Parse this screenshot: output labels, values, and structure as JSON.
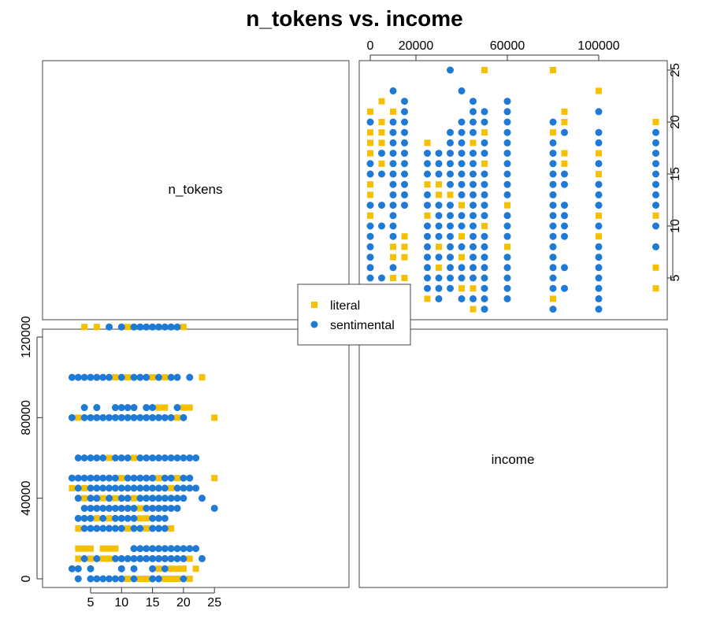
{
  "title": "n_tokens vs. income",
  "legend": {
    "items": [
      {
        "label": "literal",
        "color": "#F5C000",
        "shape": "square"
      },
      {
        "label": "sentimental",
        "color": "#1F7AD6",
        "shape": "circle"
      }
    ]
  },
  "chart_data": {
    "type": "scatter",
    "layout": "scatterplot-matrix",
    "title": "n_tokens vs. income",
    "variables": [
      "n_tokens",
      "income"
    ],
    "diagonal_labels": [
      "n_tokens",
      "income"
    ],
    "n_tokens_axis": {
      "range": [
        2,
        25
      ],
      "ticks": [
        5,
        10,
        15,
        20,
        25
      ]
    },
    "income_axis": {
      "range": [
        0,
        125000
      ],
      "ticks_bottom_left": [
        0,
        40000,
        80000,
        120000
      ],
      "ticks_top_right": [
        0,
        20000,
        60000,
        100000
      ]
    },
    "grid": false,
    "legend_position": "center",
    "series": [
      {
        "name": "literal",
        "color": "#F5C000",
        "marker": "square",
        "points": [
          [
            4,
            125000
          ],
          [
            6,
            125000
          ],
          [
            11,
            125000
          ],
          [
            20,
            125000
          ],
          [
            9,
            100000
          ],
          [
            11,
            100000
          ],
          [
            15,
            100000
          ],
          [
            17,
            100000
          ],
          [
            23,
            100000
          ],
          [
            3,
            80000
          ],
          [
            16,
            85000
          ],
          [
            17,
            85000
          ],
          [
            19,
            80000
          ],
          [
            20,
            85000
          ],
          [
            21,
            85000
          ],
          [
            25,
            80000
          ],
          [
            12,
            60000
          ],
          [
            8,
            60000
          ],
          [
            2,
            45000
          ],
          [
            4,
            45000
          ],
          [
            10,
            50000
          ],
          [
            16,
            50000
          ],
          [
            18,
            45000
          ],
          [
            19,
            50000
          ],
          [
            25,
            50000
          ],
          [
            4,
            40000
          ],
          [
            7,
            40000
          ],
          [
            9,
            40000
          ],
          [
            12,
            40000
          ],
          [
            13,
            35000
          ],
          [
            6,
            30000
          ],
          [
            8,
            30000
          ],
          [
            11,
            25000
          ],
          [
            13,
            30000
          ],
          [
            14,
            30000
          ],
          [
            14,
            25000
          ],
          [
            18,
            25000
          ],
          [
            3,
            25000
          ],
          [
            3,
            15000
          ],
          [
            4,
            15000
          ],
          [
            5,
            15000
          ],
          [
            7,
            15000
          ],
          [
            8,
            15000
          ],
          [
            9,
            15000
          ],
          [
            3,
            10000
          ],
          [
            5,
            10000
          ],
          [
            7,
            10000
          ],
          [
            8,
            10000
          ],
          [
            17,
            0
          ],
          [
            18,
            0
          ],
          [
            18,
            5000
          ],
          [
            19,
            0
          ],
          [
            19,
            5000
          ],
          [
            20,
            5000
          ],
          [
            21,
            0
          ],
          [
            22,
            5000
          ],
          [
            21,
            10000
          ],
          [
            11,
            0
          ],
          [
            13,
            0
          ],
          [
            14,
            0
          ],
          [
            16,
            5000
          ]
        ]
      },
      {
        "name": "sentimental",
        "color": "#1F7AD6",
        "marker": "circle",
        "points": [
          [
            8,
            125000
          ],
          [
            10,
            125000
          ],
          [
            12,
            125000
          ],
          [
            13,
            125000
          ],
          [
            14,
            125000
          ],
          [
            15,
            125000
          ],
          [
            16,
            125000
          ],
          [
            17,
            125000
          ],
          [
            18,
            125000
          ],
          [
            19,
            125000
          ],
          [
            2,
            100000
          ],
          [
            3,
            100000
          ],
          [
            4,
            100000
          ],
          [
            5,
            100000
          ],
          [
            6,
            100000
          ],
          [
            7,
            100000
          ],
          [
            8,
            100000
          ],
          [
            10,
            100000
          ],
          [
            12,
            100000
          ],
          [
            13,
            100000
          ],
          [
            14,
            100000
          ],
          [
            16,
            100000
          ],
          [
            18,
            100000
          ],
          [
            19,
            100000
          ],
          [
            21,
            100000
          ],
          [
            2,
            80000
          ],
          [
            4,
            85000
          ],
          [
            4,
            80000
          ],
          [
            5,
            80000
          ],
          [
            6,
            85000
          ],
          [
            6,
            80000
          ],
          [
            7,
            80000
          ],
          [
            8,
            80000
          ],
          [
            9,
            85000
          ],
          [
            9,
            80000
          ],
          [
            10,
            85000
          ],
          [
            10,
            80000
          ],
          [
            11,
            85000
          ],
          [
            11,
            80000
          ],
          [
            12,
            85000
          ],
          [
            12,
            80000
          ],
          [
            13,
            80000
          ],
          [
            14,
            85000
          ],
          [
            14,
            80000
          ],
          [
            15,
            85000
          ],
          [
            15,
            80000
          ],
          [
            16,
            80000
          ],
          [
            17,
            80000
          ],
          [
            18,
            80000
          ],
          [
            19,
            85000
          ],
          [
            20,
            80000
          ],
          [
            3,
            60000
          ],
          [
            4,
            60000
          ],
          [
            5,
            60000
          ],
          [
            6,
            60000
          ],
          [
            7,
            60000
          ],
          [
            9,
            60000
          ],
          [
            10,
            60000
          ],
          [
            11,
            60000
          ],
          [
            13,
            60000
          ],
          [
            14,
            60000
          ],
          [
            15,
            60000
          ],
          [
            16,
            60000
          ],
          [
            17,
            60000
          ],
          [
            18,
            60000
          ],
          [
            19,
            60000
          ],
          [
            20,
            60000
          ],
          [
            21,
            60000
          ],
          [
            22,
            60000
          ],
          [
            2,
            50000
          ],
          [
            3,
            50000
          ],
          [
            4,
            50000
          ],
          [
            5,
            50000
          ],
          [
            6,
            50000
          ],
          [
            7,
            50000
          ],
          [
            8,
            50000
          ],
          [
            9,
            50000
          ],
          [
            11,
            50000
          ],
          [
            12,
            50000
          ],
          [
            13,
            50000
          ],
          [
            14,
            50000
          ],
          [
            15,
            50000
          ],
          [
            17,
            50000
          ],
          [
            18,
            50000
          ],
          [
            20,
            50000
          ],
          [
            21,
            50000
          ],
          [
            3,
            45000
          ],
          [
            5,
            45000
          ],
          [
            6,
            45000
          ],
          [
            7,
            45000
          ],
          [
            8,
            45000
          ],
          [
            9,
            45000
          ],
          [
            10,
            45000
          ],
          [
            11,
            45000
          ],
          [
            12,
            45000
          ],
          [
            13,
            45000
          ],
          [
            14,
            45000
          ],
          [
            15,
            45000
          ],
          [
            16,
            45000
          ],
          [
            17,
            45000
          ],
          [
            19,
            45000
          ],
          [
            20,
            45000
          ],
          [
            21,
            45000
          ],
          [
            22,
            45000
          ],
          [
            3,
            40000
          ],
          [
            5,
            40000
          ],
          [
            6,
            40000
          ],
          [
            8,
            40000
          ],
          [
            10,
            40000
          ],
          [
            11,
            40000
          ],
          [
            13,
            40000
          ],
          [
            14,
            40000
          ],
          [
            15,
            40000
          ],
          [
            16,
            40000
          ],
          [
            17,
            40000
          ],
          [
            18,
            40000
          ],
          [
            19,
            40000
          ],
          [
            20,
            40000
          ],
          [
            23,
            40000
          ],
          [
            4,
            35000
          ],
          [
            5,
            35000
          ],
          [
            6,
            35000
          ],
          [
            7,
            35000
          ],
          [
            8,
            35000
          ],
          [
            9,
            35000
          ],
          [
            10,
            35000
          ],
          [
            11,
            35000
          ],
          [
            12,
            35000
          ],
          [
            14,
            35000
          ],
          [
            15,
            35000
          ],
          [
            16,
            35000
          ],
          [
            17,
            35000
          ],
          [
            18,
            35000
          ],
          [
            19,
            35000
          ],
          [
            25,
            35000
          ],
          [
            3,
            30000
          ],
          [
            4,
            30000
          ],
          [
            5,
            30000
          ],
          [
            7,
            30000
          ],
          [
            9,
            30000
          ],
          [
            10,
            30000
          ],
          [
            11,
            30000
          ],
          [
            12,
            30000
          ],
          [
            15,
            30000
          ],
          [
            16,
            30000
          ],
          [
            17,
            30000
          ],
          [
            4,
            25000
          ],
          [
            5,
            25000
          ],
          [
            6,
            25000
          ],
          [
            7,
            25000
          ],
          [
            8,
            25000
          ],
          [
            9,
            25000
          ],
          [
            10,
            25000
          ],
          [
            12,
            25000
          ],
          [
            13,
            25000
          ],
          [
            15,
            25000
          ],
          [
            16,
            25000
          ],
          [
            17,
            25000
          ],
          [
            12,
            15000
          ],
          [
            13,
            15000
          ],
          [
            14,
            15000
          ],
          [
            15,
            15000
          ],
          [
            16,
            15000
          ],
          [
            17,
            15000
          ],
          [
            18,
            15000
          ],
          [
            19,
            15000
          ],
          [
            20,
            15000
          ],
          [
            21,
            15000
          ],
          [
            22,
            15000
          ],
          [
            4,
            10000
          ],
          [
            6,
            10000
          ],
          [
            9,
            10000
          ],
          [
            10,
            10000
          ],
          [
            11,
            10000
          ],
          [
            12,
            10000
          ],
          [
            13,
            10000
          ],
          [
            14,
            10000
          ],
          [
            15,
            10000
          ],
          [
            16,
            10000
          ],
          [
            17,
            10000
          ],
          [
            18,
            10000
          ],
          [
            19,
            10000
          ],
          [
            20,
            10000
          ],
          [
            23,
            10000
          ],
          [
            2,
            5000
          ],
          [
            3,
            5000
          ],
          [
            5,
            5000
          ],
          [
            10,
            5000
          ],
          [
            12,
            5000
          ],
          [
            15,
            5000
          ],
          [
            17,
            5000
          ],
          [
            3,
            0
          ],
          [
            5,
            0
          ],
          [
            6,
            0
          ],
          [
            7,
            0
          ],
          [
            8,
            0
          ],
          [
            9,
            0
          ],
          [
            10,
            0
          ],
          [
            12,
            0
          ],
          [
            15,
            0
          ],
          [
            16,
            0
          ],
          [
            20,
            0
          ]
        ]
      }
    ]
  }
}
